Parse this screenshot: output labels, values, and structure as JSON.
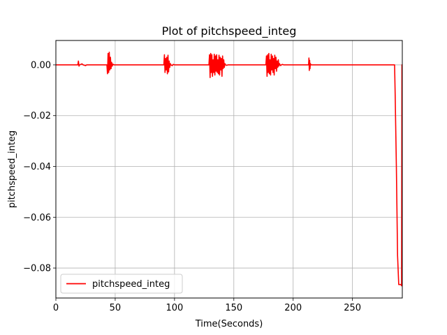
{
  "chart_data": {
    "type": "line",
    "title": "Plot of pitchspeed_integ",
    "xlabel": "Time(Seconds)",
    "ylabel": "pitchspeed_integ",
    "xlim": [
      0,
      292
    ],
    "ylim": [
      -0.0918,
      0.0096
    ],
    "xticks": [
      0,
      50,
      100,
      150,
      200,
      250
    ],
    "xtick_labels": [
      "0",
      "50",
      "100",
      "150",
      "200",
      "250"
    ],
    "yticks": [
      0.0,
      -0.02,
      -0.04,
      -0.06,
      -0.08
    ],
    "ytick_labels": [
      "0.00",
      "−0.02",
      "−0.04",
      "−0.06",
      "−0.08"
    ],
    "grid": true,
    "legend": {
      "placement": "lower-left"
    },
    "series": [
      {
        "name": "pitchspeed_integ",
        "color": "#ff0000",
        "x": [
          0,
          18.5,
          19,
          19.5,
          20,
          22,
          23,
          25,
          26,
          43,
          43.5,
          44,
          44.5,
          45,
          45.5,
          46,
          46.5,
          47,
          47.5,
          48,
          49,
          50,
          91,
          91.5,
          92,
          92.5,
          93,
          93.5,
          94,
          94.5,
          95,
          95.5,
          96,
          96.5,
          97,
          98,
          99,
          100,
          129,
          129.5,
          130,
          130.5,
          131,
          131.5,
          132,
          132.5,
          133,
          133.5,
          134,
          134.5,
          135,
          135.5,
          136,
          136.5,
          137,
          137.5,
          138,
          138.5,
          139,
          139.5,
          140,
          140.5,
          141,
          141.5,
          142,
          142.5,
          143,
          144,
          145,
          177,
          177.5,
          178,
          178.5,
          179,
          179.5,
          180,
          180.5,
          181,
          181.5,
          182,
          182.5,
          183,
          183.5,
          184,
          184.5,
          185,
          185.5,
          186,
          186.5,
          187,
          187.5,
          188,
          188.5,
          189,
          189.5,
          190,
          191,
          192,
          213,
          213.3,
          213.6,
          213.9,
          214.2,
          214.5,
          215,
          216,
          285.5,
          286,
          287,
          288,
          289,
          290,
          291,
          291.4,
          291.7,
          292
        ],
        "y": [
          0,
          0,
          0.0015,
          -0.0005,
          0,
          0.0004,
          0,
          -0.0003,
          0,
          0,
          -0.0035,
          0.0045,
          -0.003,
          0.005,
          -0.002,
          0.003,
          -0.0015,
          0.001,
          -0.0005,
          0.0003,
          0,
          0,
          0,
          0.004,
          -0.003,
          0.0025,
          -0.002,
          0.003,
          -0.0035,
          0.0038,
          -0.0028,
          0.0015,
          -0.001,
          0.0005,
          0,
          -0.0003,
          0.0002,
          0,
          0,
          0.004,
          -0.005,
          0.0045,
          -0.003,
          0.004,
          -0.0045,
          0.002,
          -0.003,
          0.0042,
          -0.004,
          0.0035,
          -0.0025,
          0.004,
          -0.003,
          0.002,
          -0.0035,
          0.0038,
          -0.004,
          0.003,
          -0.002,
          0.0025,
          -0.0045,
          0.0035,
          -0.0015,
          0.002,
          -0.001,
          0.0005,
          0,
          -0.0002,
          0,
          0,
          0.0035,
          -0.0045,
          0.004,
          -0.003,
          0.0045,
          -0.0035,
          0.002,
          -0.004,
          0.0042,
          -0.002,
          0.0035,
          -0.003,
          0.0025,
          -0.004,
          0.0038,
          -0.0015,
          0.003,
          -0.0025,
          0.0015,
          -0.001,
          0.002,
          -0.0005,
          0.0005,
          0,
          -0.0003,
          0,
          0.0002,
          0,
          0,
          0.0027,
          -0.0022,
          0.0018,
          -0.0015,
          0.0005,
          0,
          0,
          0,
          -0.012,
          -0.04,
          -0.075,
          -0.0865,
          -0.0865,
          -0.0865,
          -0.087,
          0.0,
          0
        ]
      }
    ]
  }
}
